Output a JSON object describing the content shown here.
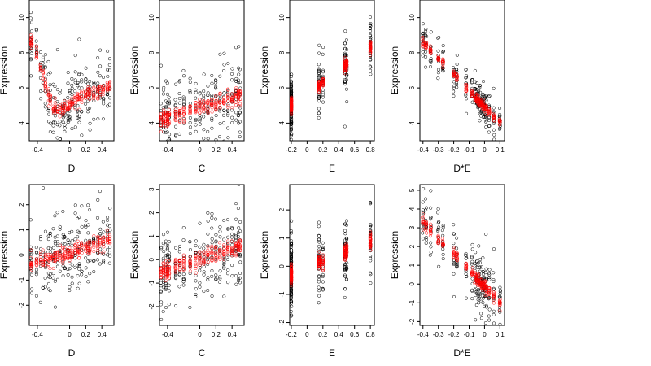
{
  "colors": {
    "observed": "#000000",
    "fitted": "#ff0000"
  },
  "chart_data": [
    {
      "type": "scatter",
      "xlabel": "D",
      "ylabel": "Expression",
      "xlim": [
        -0.5,
        0.55
      ],
      "ylim": [
        3.0,
        11.0
      ],
      "xticks": [
        -0.4,
        0.0,
        0.2,
        0.4
      ],
      "yticks": [
        4,
        6,
        8,
        10
      ],
      "trend": {
        "shape": "curve",
        "points": [
          [
            -0.48,
            8.6
          ],
          [
            -0.4,
            8.0
          ],
          [
            -0.3,
            6.2
          ],
          [
            -0.2,
            4.8
          ],
          [
            -0.1,
            4.7
          ],
          [
            0.0,
            5.0
          ],
          [
            0.1,
            5.4
          ],
          [
            0.2,
            5.6
          ],
          [
            0.3,
            5.7
          ],
          [
            0.4,
            5.9
          ],
          [
            0.5,
            6.0
          ]
        ]
      },
      "x_values": [
        -0.48,
        -0.47,
        -0.41,
        -0.36,
        -0.33,
        -0.3,
        -0.26,
        -0.24,
        -0.2,
        -0.18,
        -0.15,
        -0.12,
        -0.08,
        -0.06,
        -0.02,
        0.0,
        0.03,
        0.07,
        0.1,
        0.12,
        0.15,
        0.2,
        0.23,
        0.25,
        0.3,
        0.35,
        0.38,
        0.42,
        0.47,
        0.5
      ],
      "scatter": {
        "point_count": 240,
        "spread": 0.9,
        "clip": [
          3.0,
          11.0
        ]
      }
    },
    {
      "type": "scatter",
      "xlabel": "C",
      "ylabel": "Expression",
      "xlim": [
        -0.5,
        0.55
      ],
      "ylim": [
        3.0,
        11.0
      ],
      "xticks": [
        -0.4,
        0.0,
        0.2,
        0.4
      ],
      "yticks": [
        4,
        6,
        8,
        10
      ],
      "trend": {
        "shape": "line",
        "points": [
          [
            -0.48,
            4.2
          ],
          [
            0.52,
            5.6
          ]
        ]
      },
      "x_values": [
        -0.48,
        -0.45,
        -0.42,
        -0.4,
        -0.38,
        -0.3,
        -0.25,
        -0.2,
        -0.12,
        -0.05,
        0.0,
        0.05,
        0.1,
        0.15,
        0.2,
        0.25,
        0.3,
        0.35,
        0.4,
        0.45,
        0.48,
        0.5
      ],
      "scatter": {
        "point_count": 240,
        "spread": 1.1,
        "clip": [
          3.0,
          11.0
        ]
      }
    },
    {
      "type": "scatter",
      "xlabel": "E",
      "ylabel": "Expression",
      "xlim": [
        -0.22,
        0.85
      ],
      "ylim": [
        3.0,
        11.0
      ],
      "xticks": [
        -0.2,
        0.0,
        0.2,
        0.4,
        0.6,
        0.8
      ],
      "yticks": [
        4,
        6,
        8,
        10
      ],
      "trend": {
        "shape": "line",
        "points": [
          [
            -0.2,
            5.0
          ],
          [
            0.8,
            8.3
          ]
        ]
      },
      "x_values": [
        -0.2,
        -0.2,
        -0.2,
        -0.2,
        -0.2,
        -0.2,
        0.15,
        0.15,
        0.2,
        0.48,
        0.48,
        0.5,
        0.8,
        0.8
      ],
      "scatter": {
        "point_count": 240,
        "spread": 0.8,
        "clip": [
          3.0,
          11.0
        ]
      }
    },
    {
      "type": "scatter",
      "xlabel": "D*E",
      "ylabel": "Expression",
      "xlim": [
        -0.42,
        0.13
      ],
      "ylim": [
        3.0,
        11.0
      ],
      "xticks": [
        -0.4,
        -0.3,
        -0.2,
        -0.1,
        0.0,
        0.1
      ],
      "yticks": [
        4,
        6,
        8,
        10
      ],
      "trend": {
        "shape": "line",
        "points": [
          [
            -0.4,
            8.6
          ],
          [
            0.1,
            4.0
          ]
        ]
      },
      "x_values": [
        -0.4,
        -0.38,
        -0.35,
        -0.3,
        -0.27,
        -0.2,
        -0.18,
        -0.12,
        -0.08,
        -0.06,
        -0.05,
        -0.04,
        -0.03,
        -0.02,
        -0.01,
        0.0,
        0.01,
        0.03,
        0.06,
        0.1
      ],
      "scatter": {
        "point_count": 240,
        "spread": 0.55,
        "clip": [
          3.0,
          11.0
        ]
      }
    },
    {
      "type": "scatter",
      "xlabel": "D",
      "ylabel": "Expression",
      "xlim": [
        -0.5,
        0.55
      ],
      "ylim": [
        -2.8,
        2.8
      ],
      "xticks": [
        -0.4,
        0.0,
        0.2,
        0.4
      ],
      "yticks": [
        -2,
        -1,
        0,
        1,
        2
      ],
      "trend": {
        "shape": "line",
        "points": [
          [
            -0.48,
            -0.4
          ],
          [
            0.52,
            0.6
          ]
        ]
      },
      "x_values": [
        -0.48,
        -0.47,
        -0.41,
        -0.36,
        -0.33,
        -0.3,
        -0.26,
        -0.24,
        -0.2,
        -0.18,
        -0.15,
        -0.12,
        -0.08,
        -0.06,
        -0.02,
        0.0,
        0.03,
        0.07,
        0.1,
        0.12,
        0.15,
        0.2,
        0.23,
        0.25,
        0.3,
        0.35,
        0.38,
        0.42,
        0.47,
        0.5
      ],
      "scatter": {
        "point_count": 240,
        "spread": 0.7,
        "clip": [
          -2.8,
          2.8
        ]
      }
    },
    {
      "type": "scatter",
      "xlabel": "C",
      "ylabel": "Expression",
      "xlim": [
        -0.5,
        0.55
      ],
      "ylim": [
        -2.8,
        3.2
      ],
      "xticks": [
        -0.4,
        0.0,
        0.2,
        0.4
      ],
      "yticks": [
        -2,
        -1,
        0,
        1,
        2,
        3
      ],
      "trend": {
        "shape": "line",
        "points": [
          [
            -0.48,
            -0.5
          ],
          [
            0.52,
            0.6
          ]
        ]
      },
      "x_values": [
        -0.48,
        -0.45,
        -0.42,
        -0.4,
        -0.38,
        -0.3,
        -0.25,
        -0.2,
        -0.12,
        -0.05,
        0.0,
        0.05,
        0.1,
        0.15,
        0.2,
        0.25,
        0.3,
        0.35,
        0.4,
        0.45,
        0.48,
        0.5
      ],
      "scatter": {
        "point_count": 240,
        "spread": 0.8,
        "clip": [
          -2.8,
          3.2
        ]
      }
    },
    {
      "type": "scatter",
      "xlabel": "E",
      "ylabel": "Expression",
      "xlim": [
        -0.22,
        0.85
      ],
      "ylim": [
        -2.1,
        2.9
      ],
      "xticks": [
        -0.2,
        0.0,
        0.2,
        0.4,
        0.6,
        0.8
      ],
      "yticks": [
        -2,
        -1,
        0,
        1,
        2
      ],
      "trend": {
        "shape": "line",
        "points": [
          [
            -0.2,
            -0.3
          ],
          [
            0.8,
            0.9
          ]
        ]
      },
      "x_values": [
        -0.2,
        -0.2,
        -0.2,
        -0.2,
        -0.2,
        -0.2,
        0.15,
        0.15,
        0.2,
        0.48,
        0.48,
        0.5,
        0.8,
        0.8
      ],
      "scatter": {
        "point_count": 240,
        "spread": 0.65,
        "clip": [
          -2.1,
          2.9
        ]
      }
    },
    {
      "type": "scatter",
      "xlabel": "D*E",
      "ylabel": "Expression",
      "xlim": [
        -0.42,
        0.13
      ],
      "ylim": [
        -2.2,
        5.3
      ],
      "xticks": [
        -0.4,
        -0.3,
        -0.2,
        -0.1,
        0.0,
        0.1
      ],
      "yticks": [
        -2,
        -1,
        0,
        1,
        2,
        3,
        4,
        5
      ],
      "trend": {
        "shape": "line",
        "points": [
          [
            -0.4,
            3.3
          ],
          [
            0.11,
            -1.1
          ]
        ]
      },
      "x_values": [
        -0.4,
        -0.38,
        -0.35,
        -0.3,
        -0.27,
        -0.2,
        -0.18,
        -0.12,
        -0.08,
        -0.06,
        -0.05,
        -0.04,
        -0.03,
        -0.02,
        -0.01,
        0.0,
        0.01,
        0.03,
        0.06,
        0.1
      ],
      "scatter": {
        "point_count": 240,
        "spread": 0.7,
        "clip": [
          -2.2,
          5.3
        ]
      }
    }
  ]
}
